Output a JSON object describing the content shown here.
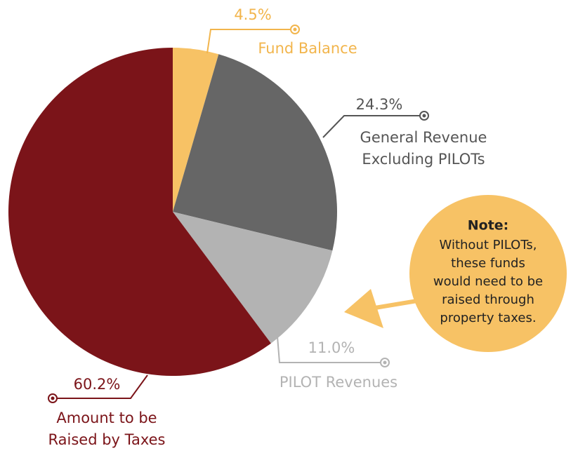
{
  "chart_data": {
    "type": "pie",
    "categories": [
      "Fund Balance",
      "General Revenue Excluding PILOTs",
      "PILOT Revenues",
      "Amount to be Raised by Taxes"
    ],
    "values": [
      4.5,
      24.3,
      11.0,
      60.2
    ],
    "value_labels": [
      "4.5%",
      "24.3%",
      "11.0%",
      "60.2%"
    ],
    "colors": [
      "#f7c265",
      "#666666",
      "#b3b3b3",
      "#7b1419"
    ],
    "label_colors": [
      "#f2b54c",
      "#555555",
      "#b3b3b3",
      "#7b1419"
    ],
    "note": {
      "title": "Note:",
      "lines": [
        "Without PILOTs,",
        "these funds",
        "would need to be",
        "raised through",
        "property taxes."
      ]
    }
  }
}
